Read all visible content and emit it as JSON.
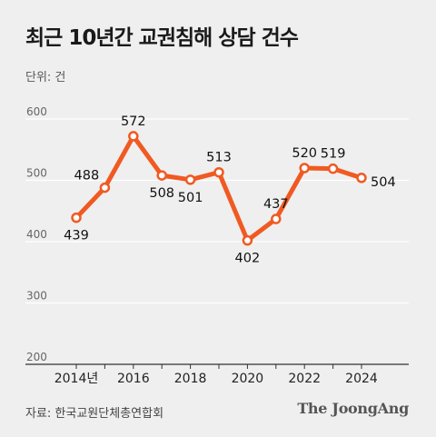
{
  "title": "최근 10년간 교권침해 상담 건수",
  "unit_label": "단위: 건",
  "source": "자료: 한국교원단체총연합회",
  "brand": "The JoongAng",
  "colors": {
    "line": "#f05a22",
    "marker_fill": "#ffffff",
    "grid": "#ffffff",
    "axis": "#333333"
  },
  "chart_data": {
    "type": "line",
    "title": "최근 10년간 교권침해 상담 건수",
    "xlabel": "",
    "ylabel": "단위: 건",
    "x": [
      2014,
      2015,
      2016,
      2017,
      2018,
      2019,
      2020,
      2021,
      2022,
      2023,
      2024
    ],
    "x_tick_labels": [
      "2014년",
      "2016",
      "2018",
      "2020",
      "2022",
      "2024"
    ],
    "x_tick_values": [
      2014,
      2016,
      2018,
      2020,
      2022,
      2024
    ],
    "series": [
      {
        "values": [
          439,
          488,
          572,
          508,
          501,
          513,
          402,
          437,
          520,
          519,
          504
        ]
      }
    ],
    "data_labels": [
      "439",
      "488",
      "572",
      "508",
      "501",
      "513",
      "402",
      "437",
      "520",
      "519",
      "504"
    ],
    "y_ticks": [
      600,
      500,
      400,
      300,
      200
    ],
    "ylim": [
      200,
      600
    ],
    "grid": true
  }
}
